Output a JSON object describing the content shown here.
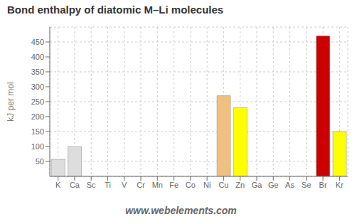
{
  "chart_data": {
    "type": "bar",
    "title": "Bond enthalpy of diatomic M–Li molecules",
    "ylabel": "kJ per mol",
    "annotations": [
      "www.webelements.com"
    ],
    "categories": [
      "K",
      "Ca",
      "Sc",
      "Ti",
      "V",
      "Cr",
      "Mn",
      "Fe",
      "Co",
      "Ni",
      "Cu",
      "Zn",
      "Ga",
      "Ge",
      "As",
      "Se",
      "Br",
      "Kr"
    ],
    "values": [
      57,
      100,
      0,
      0,
      0,
      0,
      0,
      0,
      0,
      0,
      270,
      230,
      0,
      0,
      0,
      0,
      470,
      150
    ],
    "colors": [
      "#dddddd",
      "#dddddd",
      "#cc0000",
      "#cc0000",
      "#cc0000",
      "#cc0000",
      "#cc0000",
      "#cc0000",
      "#cc0000",
      "#aaaaaa",
      "#f0c080",
      "#ffff00",
      "#ffaa00",
      "#ffaa00",
      "#ffcc00",
      "#ffcc00",
      "#cc0000",
      "#ffff00"
    ],
    "ylim": [
      0,
      500
    ],
    "yticks": [
      50,
      100,
      150,
      200,
      250,
      300,
      350,
      400,
      450
    ],
    "grid": true
  }
}
